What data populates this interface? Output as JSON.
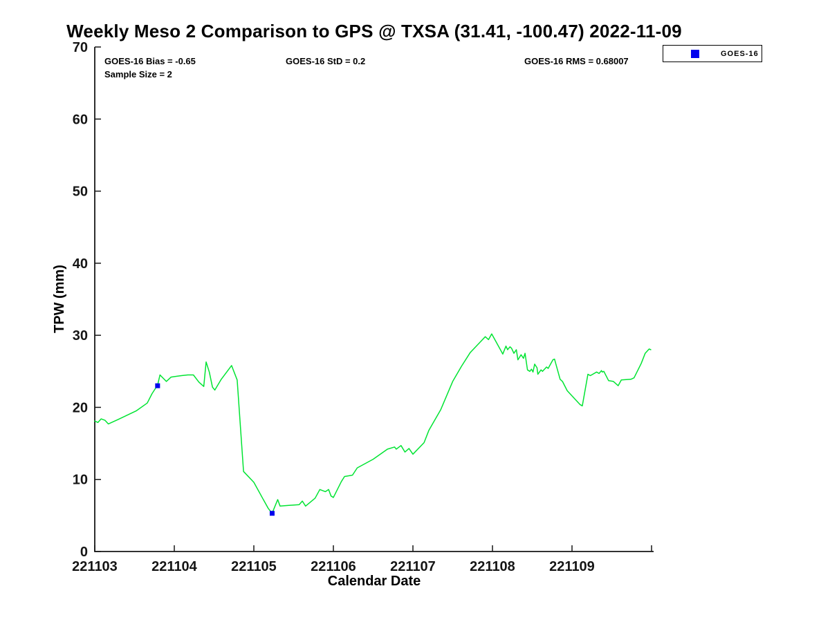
{
  "title": "Weekly Meso 2 Comparison to GPS @ TXSA (31.41, -100.47) 2022-11-09",
  "annotations": {
    "bias": "GOES-16 Bias = -0.65",
    "std": "GOES-16 StD = 0.2",
    "rms": "GOES-16 RMS = 0.68007",
    "sample": "Sample Size = 2"
  },
  "legend": {
    "items": [
      {
        "label": "GOES-16",
        "marker": "filled-square",
        "marker_color": "#0000ee"
      }
    ]
  },
  "colors": {
    "background": "#ffffff",
    "line_green": "#00e432",
    "marker_blue": "#0000ee",
    "axis": "#151515",
    "text": "#000000"
  },
  "chart_data": {
    "type": "line",
    "title": "Weekly Meso 2 Comparison to GPS @ TXSA (31.41, -100.47) 2022-11-09",
    "xlabel": "Calendar Date",
    "ylabel": "TPW (mm)",
    "ylim": [
      0,
      70
    ],
    "yticks": [
      0,
      10,
      20,
      30,
      40,
      50,
      60,
      70
    ],
    "xticks": [
      {
        "day": 0,
        "label": "221103"
      },
      {
        "day": 1,
        "label": "221104"
      },
      {
        "day": 2,
        "label": "221105"
      },
      {
        "day": 3,
        "label": "221106"
      },
      {
        "day": 4,
        "label": "221107"
      },
      {
        "day": 5,
        "label": "221108"
      },
      {
        "day": 6,
        "label": "221109"
      },
      {
        "day": 7,
        "label": ""
      }
    ],
    "x_encoding": "days after first tick (221103)",
    "grid": false,
    "legend_position": "northeast",
    "series": [
      {
        "name": "TPW time series",
        "type": "line",
        "color": "#00e432",
        "points": [
          [
            0.0,
            18.1
          ],
          [
            0.04,
            17.9
          ],
          [
            0.08,
            18.4
          ],
          [
            0.13,
            18.2
          ],
          [
            0.17,
            17.7
          ],
          [
            0.29,
            18.3
          ],
          [
            0.52,
            19.5
          ],
          [
            0.66,
            20.6
          ],
          [
            0.72,
            21.9
          ],
          [
            0.79,
            23.1
          ],
          [
            0.82,
            24.5
          ],
          [
            0.9,
            23.6
          ],
          [
            0.96,
            24.2
          ],
          [
            1.09,
            24.4
          ],
          [
            1.17,
            24.5
          ],
          [
            1.24,
            24.5
          ],
          [
            1.31,
            23.5
          ],
          [
            1.37,
            22.9
          ],
          [
            1.4,
            26.3
          ],
          [
            1.44,
            24.9
          ],
          [
            1.48,
            22.8
          ],
          [
            1.51,
            22.4
          ],
          [
            1.59,
            23.9
          ],
          [
            1.72,
            25.8
          ],
          [
            1.79,
            23.8
          ],
          [
            1.87,
            11.1
          ],
          [
            2.0,
            9.6
          ],
          [
            2.11,
            7.4
          ],
          [
            2.18,
            6.0
          ],
          [
            2.23,
            5.3
          ],
          [
            2.3,
            7.2
          ],
          [
            2.33,
            6.3
          ],
          [
            2.44,
            6.4
          ],
          [
            2.57,
            6.5
          ],
          [
            2.61,
            7.0
          ],
          [
            2.65,
            6.3
          ],
          [
            2.77,
            7.4
          ],
          [
            2.83,
            8.6
          ],
          [
            2.9,
            8.3
          ],
          [
            2.94,
            8.6
          ],
          [
            2.97,
            7.7
          ],
          [
            3.0,
            7.5
          ],
          [
            3.1,
            9.7
          ],
          [
            3.14,
            10.4
          ],
          [
            3.24,
            10.6
          ],
          [
            3.3,
            11.6
          ],
          [
            3.5,
            12.8
          ],
          [
            3.68,
            14.2
          ],
          [
            3.77,
            14.5
          ],
          [
            3.79,
            14.2
          ],
          [
            3.85,
            14.7
          ],
          [
            3.9,
            13.8
          ],
          [
            3.95,
            14.3
          ],
          [
            4.0,
            13.5
          ],
          [
            4.14,
            15.1
          ],
          [
            4.2,
            16.8
          ],
          [
            4.35,
            19.7
          ],
          [
            4.5,
            23.6
          ],
          [
            4.61,
            25.7
          ],
          [
            4.72,
            27.6
          ],
          [
            4.84,
            29.0
          ],
          [
            4.91,
            29.8
          ],
          [
            4.95,
            29.4
          ],
          [
            4.99,
            30.2
          ],
          [
            5.1,
            28.0
          ],
          [
            5.13,
            27.4
          ],
          [
            5.17,
            28.5
          ],
          [
            5.19,
            28.0
          ],
          [
            5.22,
            28.4
          ],
          [
            5.24,
            28.2
          ],
          [
            5.27,
            27.5
          ],
          [
            5.3,
            28.0
          ],
          [
            5.32,
            26.6
          ],
          [
            5.36,
            27.3
          ],
          [
            5.39,
            26.8
          ],
          [
            5.41,
            27.5
          ],
          [
            5.44,
            25.2
          ],
          [
            5.47,
            25.0
          ],
          [
            5.49,
            25.3
          ],
          [
            5.51,
            24.9
          ],
          [
            5.53,
            26.0
          ],
          [
            5.56,
            25.5
          ],
          [
            5.57,
            24.6
          ],
          [
            5.61,
            25.2
          ],
          [
            5.63,
            25.0
          ],
          [
            5.68,
            25.6
          ],
          [
            5.7,
            25.4
          ],
          [
            5.76,
            26.6
          ],
          [
            5.78,
            26.7
          ],
          [
            5.85,
            23.9
          ],
          [
            5.88,
            23.6
          ],
          [
            5.94,
            22.3
          ],
          [
            6.1,
            20.4
          ],
          [
            6.13,
            20.2
          ],
          [
            6.2,
            24.6
          ],
          [
            6.23,
            24.4
          ],
          [
            6.31,
            24.9
          ],
          [
            6.34,
            24.7
          ],
          [
            6.37,
            25.1
          ],
          [
            6.38,
            24.9
          ],
          [
            6.4,
            25.0
          ],
          [
            6.46,
            23.7
          ],
          [
            6.52,
            23.6
          ],
          [
            6.58,
            23.0
          ],
          [
            6.62,
            23.8
          ],
          [
            6.74,
            23.9
          ],
          [
            6.78,
            24.1
          ],
          [
            6.87,
            26.1
          ],
          [
            6.92,
            27.5
          ],
          [
            6.97,
            28.1
          ],
          [
            6.99,
            28.0
          ]
        ]
      },
      {
        "name": "GOES-16",
        "type": "scatter",
        "marker": "square",
        "color": "#0000ee",
        "points": [
          [
            0.79,
            23.0
          ],
          [
            2.23,
            5.3
          ]
        ]
      }
    ]
  }
}
